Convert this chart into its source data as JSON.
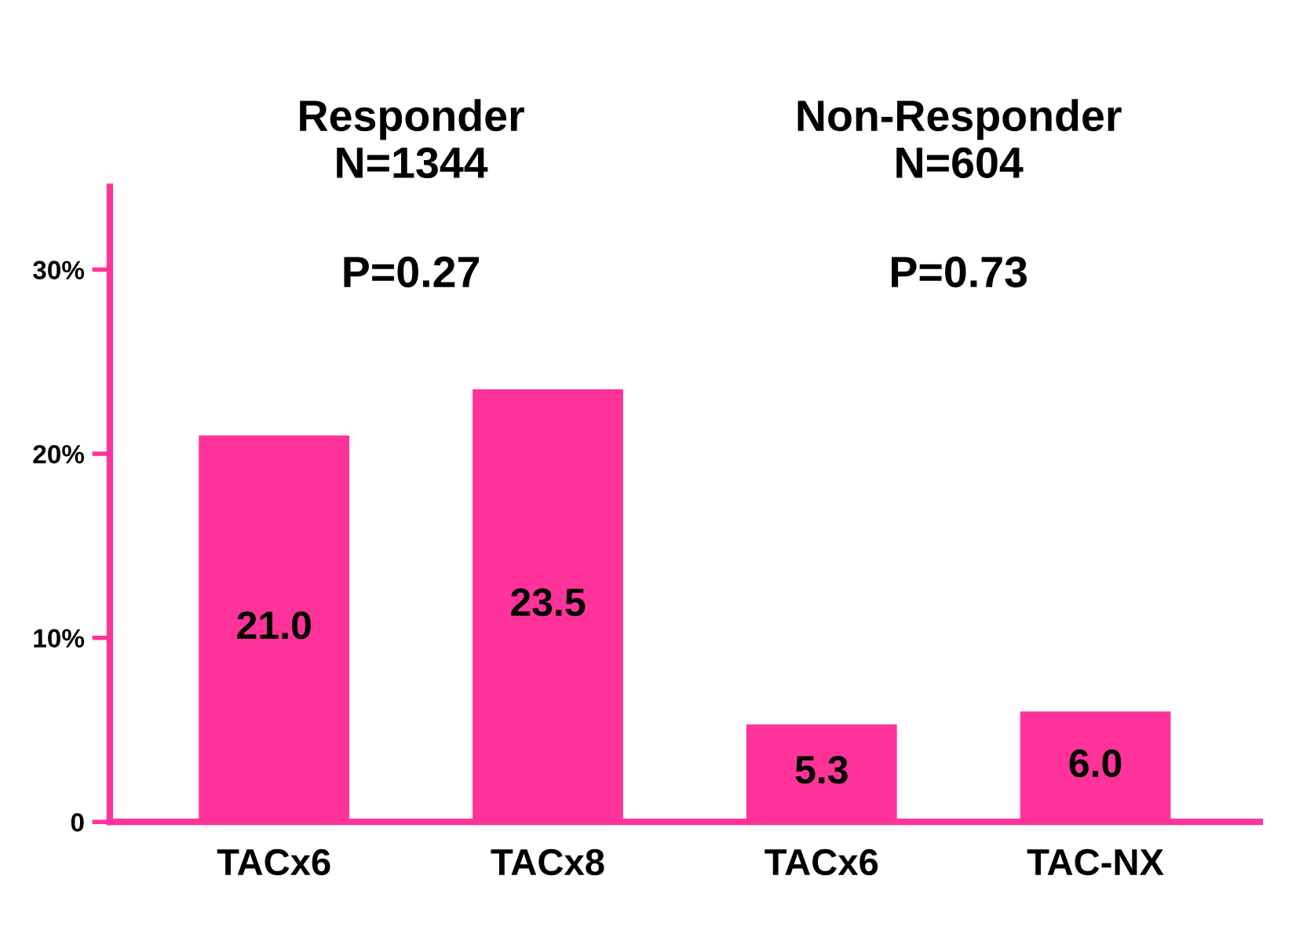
{
  "chart_data": {
    "type": "bar",
    "categories": [
      "TACx6",
      "TACx8",
      "TACx6",
      "TAC-NX"
    ],
    "values": [
      21.0,
      23.5,
      5.3,
      6.0
    ],
    "color": "#ff3399",
    "ylim": [
      0,
      34.5
    ],
    "yticks": [
      0,
      {
        "value": 10,
        "label": "10%"
      },
      {
        "value": 20,
        "label": "20%"
      },
      {
        "value": 30,
        "label": "30%"
      }
    ],
    "value_labels": [
      "21.0",
      "23.5",
      "5.3",
      "6.0"
    ],
    "grid": false,
    "legend": false,
    "annotations": [
      "Responder\nN=1344",
      "Non-Responder\nN=604",
      "P=0.27",
      "P=0.73"
    ]
  }
}
